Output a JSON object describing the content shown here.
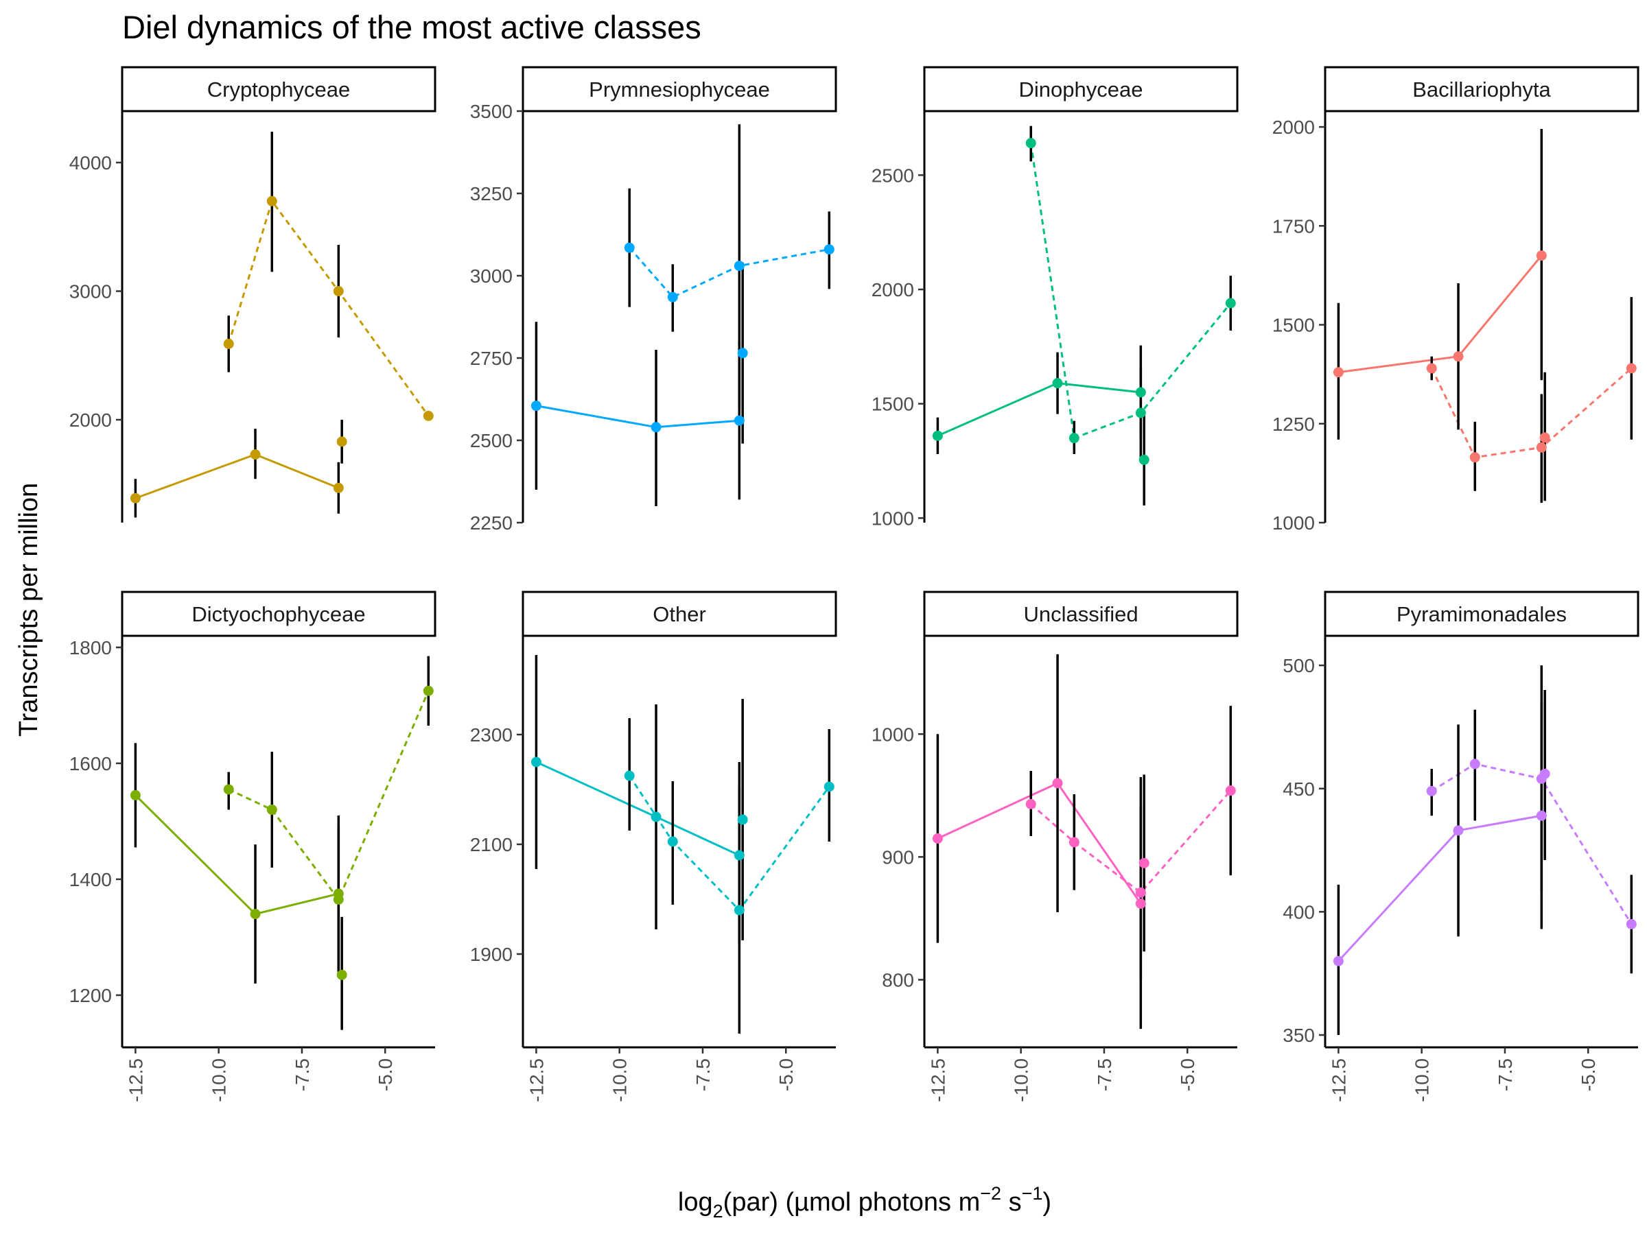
{
  "figure": {
    "title": "Diel dynamics of the most active classes",
    "ylabel": "Transcripts per million",
    "xlabel_main": "log",
    "xlabel_sub": "2",
    "xlabel_mid": "(par) (µmol photons m",
    "xlabel_sup1": "−2",
    "xlabel_mid2": " s",
    "xlabel_sup2": "−1",
    "xlabel_end": ")"
  },
  "chart_data": {
    "type": "line",
    "title": "Diel dynamics of the most active classes",
    "xlabel": "log2(par) (µmol photons m−2 s−1)",
    "ylabel": "Transcripts per million",
    "xlim": [
      -12.9,
      -3.5
    ],
    "x_ticks": [
      -12.5,
      -10.0,
      -7.5,
      -5.0
    ],
    "x_tick_labels": [
      "-12.5",
      "-10.0",
      "-7.5",
      "-5.0"
    ],
    "legend": "none",
    "grid": false,
    "line_styles": [
      "solid",
      "dashed"
    ],
    "panels": [
      {
        "name": "Cryptophyceae",
        "color": "#C49A00",
        "ylim": [
          1200,
          4400
        ],
        "y_ticks": [
          2000,
          3000,
          4000
        ],
        "series": [
          {
            "style": "solid",
            "points": [
              {
                "x": -12.5,
                "y": 1390,
                "lo": 1240,
                "hi": 1540
              },
              {
                "x": -8.9,
                "y": 1730,
                "lo": 1540,
                "hi": 1930
              },
              {
                "x": -6.4,
                "y": 1470,
                "lo": 1270,
                "hi": 1670
              }
            ]
          },
          {
            "style": "dashed",
            "points": [
              {
                "x": -9.7,
                "y": 2590,
                "lo": 2370,
                "hi": 2810
              },
              {
                "x": -8.4,
                "y": 3700,
                "lo": 3150,
                "hi": 4240
              },
              {
                "x": -6.4,
                "y": 3000,
                "lo": 2640,
                "hi": 3360
              },
              {
                "x": -3.7,
                "y": 2030,
                "lo": 2000,
                "hi": 2060
              }
            ]
          },
          {
            "style": "point",
            "points": [
              {
                "x": -6.3,
                "y": 1830,
                "lo": 1660,
                "hi": 2000
              }
            ]
          }
        ]
      },
      {
        "name": "Prymnesiophyceae",
        "color": "#00A9FF",
        "ylim": [
          2250,
          3500
        ],
        "y_ticks": [
          2250,
          2500,
          2750,
          3000,
          3250,
          3500
        ],
        "series": [
          {
            "style": "solid",
            "points": [
              {
                "x": -12.5,
                "y": 2605,
                "lo": 2350,
                "hi": 2860
              },
              {
                "x": -8.9,
                "y": 2540,
                "lo": 2300,
                "hi": 2775
              },
              {
                "x": -6.4,
                "y": 2560,
                "lo": 2320,
                "hi": 2800
              }
            ]
          },
          {
            "style": "dashed",
            "points": [
              {
                "x": -9.7,
                "y": 3085,
                "lo": 2905,
                "hi": 3265
              },
              {
                "x": -8.4,
                "y": 2935,
                "lo": 2830,
                "hi": 3035
              },
              {
                "x": -6.4,
                "y": 3030,
                "lo": 2600,
                "hi": 3460
              },
              {
                "x": -3.7,
                "y": 3080,
                "lo": 2960,
                "hi": 3195
              }
            ]
          },
          {
            "style": "point",
            "points": [
              {
                "x": -6.3,
                "y": 2765,
                "lo": 2490,
                "hi": 3040
              }
            ]
          }
        ]
      },
      {
        "name": "Dinophyceae",
        "color": "#00BF7D",
        "ylim": [
          980,
          2780
        ],
        "y_ticks": [
          1000,
          1500,
          2000,
          2500
        ],
        "series": [
          {
            "style": "solid",
            "points": [
              {
                "x": -12.5,
                "y": 1360,
                "lo": 1280,
                "hi": 1440
              },
              {
                "x": -8.9,
                "y": 1590,
                "lo": 1455,
                "hi": 1725
              },
              {
                "x": -6.4,
                "y": 1550,
                "lo": 1350,
                "hi": 1755
              }
            ]
          },
          {
            "style": "dashed",
            "points": [
              {
                "x": -9.7,
                "y": 2640,
                "lo": 2560,
                "hi": 2715
              },
              {
                "x": -8.4,
                "y": 1350,
                "lo": 1280,
                "hi": 1425
              },
              {
                "x": -6.4,
                "y": 1460,
                "lo": 1260,
                "hi": 1660
              },
              {
                "x": -3.7,
                "y": 1940,
                "lo": 1820,
                "hi": 2060
              }
            ]
          },
          {
            "style": "point",
            "points": [
              {
                "x": -6.3,
                "y": 1255,
                "lo": 1055,
                "hi": 1455
              }
            ]
          }
        ]
      },
      {
        "name": "Bacillariophyta",
        "color": "#F8766D",
        "ylim": [
          1000,
          2040
        ],
        "y_ticks": [
          1000,
          1250,
          1500,
          1750,
          2000
        ],
        "series": [
          {
            "style": "solid",
            "points": [
              {
                "x": -12.5,
                "y": 1380,
                "lo": 1210,
                "hi": 1555
              },
              {
                "x": -8.9,
                "y": 1420,
                "lo": 1235,
                "hi": 1605
              },
              {
                "x": -6.4,
                "y": 1675,
                "lo": 1360,
                "hi": 1995
              }
            ]
          },
          {
            "style": "dashed",
            "points": [
              {
                "x": -9.7,
                "y": 1390,
                "lo": 1360,
                "hi": 1420
              },
              {
                "x": -8.4,
                "y": 1165,
                "lo": 1080,
                "hi": 1255
              },
              {
                "x": -6.4,
                "y": 1190,
                "lo": 1050,
                "hi": 1325
              },
              {
                "x": -3.7,
                "y": 1390,
                "lo": 1210,
                "hi": 1570
              }
            ]
          },
          {
            "style": "point",
            "points": [
              {
                "x": -6.3,
                "y": 1215,
                "lo": 1055,
                "hi": 1380
              }
            ]
          }
        ]
      },
      {
        "name": "Dictyochophyceae",
        "color": "#7CAE00",
        "ylim": [
          1110,
          1820
        ],
        "y_ticks": [
          1200,
          1400,
          1600,
          1800
        ],
        "series": [
          {
            "style": "solid",
            "points": [
              {
                "x": -12.5,
                "y": 1545,
                "lo": 1455,
                "hi": 1635
              },
              {
                "x": -8.9,
                "y": 1340,
                "lo": 1220,
                "hi": 1460
              },
              {
                "x": -6.4,
                "y": 1375,
                "lo": 1240,
                "hi": 1510
              }
            ]
          },
          {
            "style": "dashed",
            "points": [
              {
                "x": -9.7,
                "y": 1555,
                "lo": 1520,
                "hi": 1585
              },
              {
                "x": -8.4,
                "y": 1520,
                "lo": 1420,
                "hi": 1620
              },
              {
                "x": -6.4,
                "y": 1365,
                "lo": 1240,
                "hi": 1490
              },
              {
                "x": -3.7,
                "y": 1725,
                "lo": 1665,
                "hi": 1785
              }
            ]
          },
          {
            "style": "point",
            "points": [
              {
                "x": -6.3,
                "y": 1235,
                "lo": 1140,
                "hi": 1335
              }
            ]
          }
        ]
      },
      {
        "name": "Other",
        "color": "#00BFC4",
        "ylim": [
          1730,
          2480
        ],
        "y_ticks": [
          1900,
          2100,
          2300
        ],
        "series": [
          {
            "style": "solid",
            "points": [
              {
                "x": -12.5,
                "y": 2250,
                "lo": 2055,
                "hi": 2445
              },
              {
                "x": -8.9,
                "y": 2150,
                "lo": 1945,
                "hi": 2355
              },
              {
                "x": -6.4,
                "y": 2080,
                "lo": 1920,
                "hi": 2250
              }
            ]
          },
          {
            "style": "dashed",
            "points": [
              {
                "x": -9.7,
                "y": 2225,
                "lo": 2125,
                "hi": 2330
              },
              {
                "x": -8.4,
                "y": 2105,
                "lo": 1990,
                "hi": 2215
              },
              {
                "x": -6.4,
                "y": 1980,
                "lo": 1755,
                "hi": 2205
              },
              {
                "x": -3.7,
                "y": 2205,
                "lo": 2105,
                "hi": 2310
              }
            ]
          },
          {
            "style": "point",
            "points": [
              {
                "x": -6.3,
                "y": 2145,
                "lo": 1925,
                "hi": 2365
              }
            ]
          }
        ]
      },
      {
        "name": "Unclassified",
        "color": "#FF61C3",
        "ylim": [
          745,
          1080
        ],
        "y_ticks": [
          800,
          900,
          1000
        ],
        "series": [
          {
            "style": "solid",
            "points": [
              {
                "x": -12.5,
                "y": 915,
                "lo": 830,
                "hi": 1000
              },
              {
                "x": -8.9,
                "y": 960,
                "lo": 855,
                "hi": 1065
              },
              {
                "x": -6.4,
                "y": 862,
                "lo": 760,
                "hi": 965
              }
            ]
          },
          {
            "style": "dashed",
            "points": [
              {
                "x": -9.7,
                "y": 943,
                "lo": 917,
                "hi": 970
              },
              {
                "x": -8.4,
                "y": 912,
                "lo": 873,
                "hi": 951
              },
              {
                "x": -6.4,
                "y": 871,
                "lo": 800,
                "hi": 942
              },
              {
                "x": -3.7,
                "y": 954,
                "lo": 885,
                "hi": 1023
              }
            ]
          },
          {
            "style": "point",
            "points": [
              {
                "x": -6.3,
                "y": 895,
                "lo": 823,
                "hi": 967
              }
            ]
          }
        ]
      },
      {
        "name": "Pyramimonadales",
        "color": "#C77CFF",
        "ylim": [
          345,
          512
        ],
        "y_ticks": [
          350,
          400,
          450,
          500
        ],
        "series": [
          {
            "style": "solid",
            "points": [
              {
                "x": -12.5,
                "y": 380,
                "lo": 350,
                "hi": 411
              },
              {
                "x": -8.9,
                "y": 433,
                "lo": 390,
                "hi": 476
              },
              {
                "x": -6.4,
                "y": 439,
                "lo": 393,
                "hi": 485
              }
            ]
          },
          {
            "style": "dashed",
            "points": [
              {
                "x": -9.7,
                "y": 449,
                "lo": 439,
                "hi": 458
              },
              {
                "x": -8.4,
                "y": 460,
                "lo": 437,
                "hi": 482
              },
              {
                "x": -6.4,
                "y": 454,
                "lo": 408,
                "hi": 500
              },
              {
                "x": -3.7,
                "y": 395,
                "lo": 375,
                "hi": 415
              }
            ]
          },
          {
            "style": "point",
            "points": [
              {
                "x": -6.3,
                "y": 456,
                "lo": 421,
                "hi": 490
              }
            ]
          }
        ]
      }
    ]
  }
}
